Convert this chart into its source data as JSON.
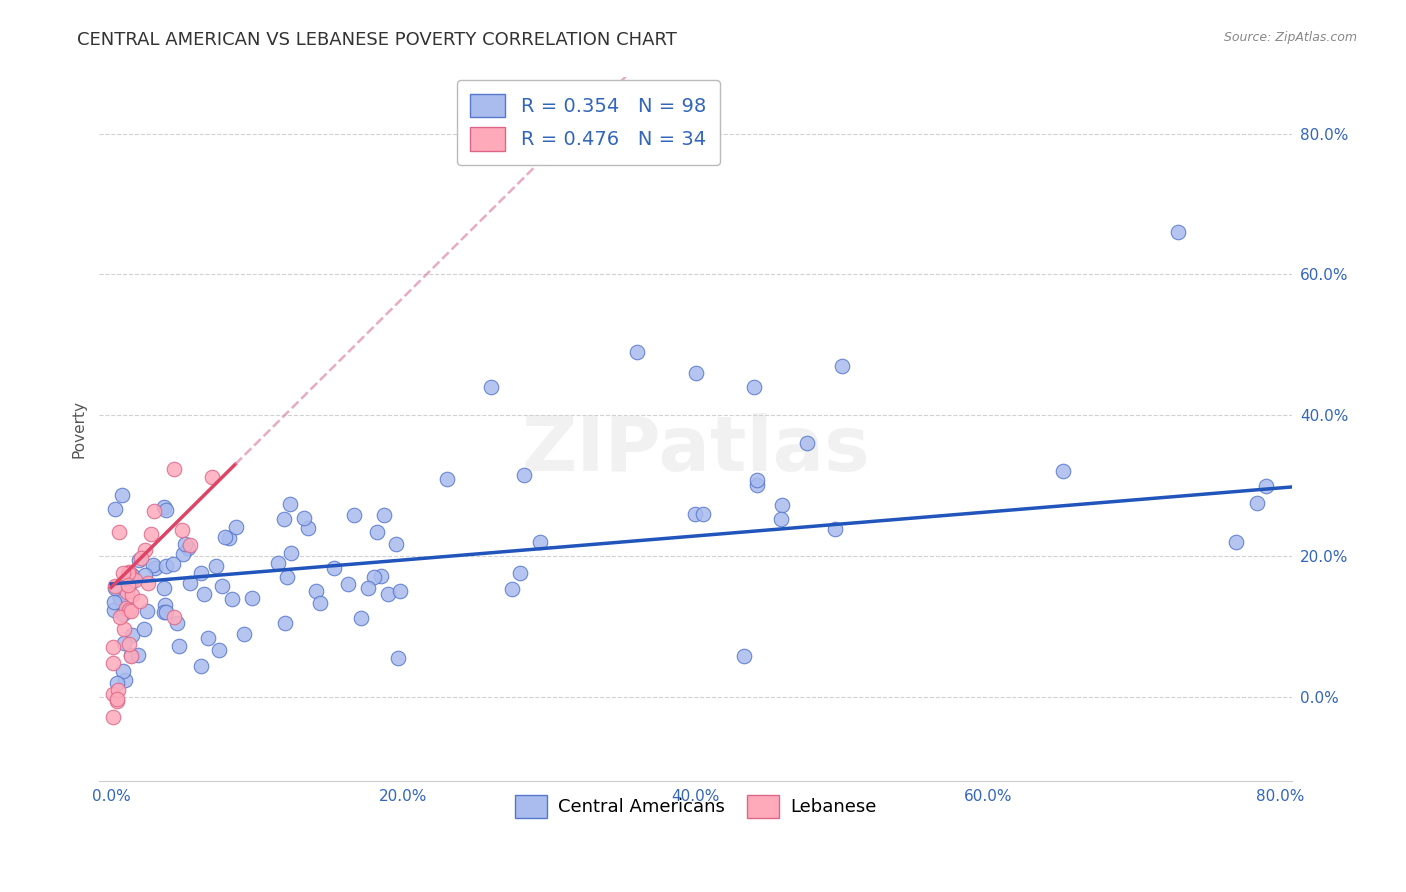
{
  "title": "CENTRAL AMERICAN VS LEBANESE POVERTY CORRELATION CHART",
  "source": "Source: ZipAtlas.com",
  "ylabel": "Poverty",
  "xmin": 0.0,
  "xmax": 0.8,
  "ymin": -0.12,
  "ymax": 0.88,
  "xticks": [
    0.0,
    0.2,
    0.4,
    0.6,
    0.8
  ],
  "yticks": [
    0.0,
    0.2,
    0.4,
    0.6,
    0.8
  ],
  "xtick_labels": [
    "0.0%",
    "20.0%",
    "40.0%",
    "60.0%",
    "80.0%"
  ],
  "ytick_labels": [
    "0.0%",
    "20.0%",
    "40.0%",
    "60.0%",
    "80.0%"
  ],
  "grid_color": "#cccccc",
  "background_color": "#ffffff",
  "blue_color": "#aabbee",
  "pink_color": "#ffaabb",
  "blue_edge_color": "#5577cc",
  "pink_edge_color": "#dd6688",
  "blue_line_color": "#2255bb",
  "pink_line_color": "#dd4466",
  "pink_dash_color": "#dd88aa",
  "r_blue": 0.354,
  "n_blue": 98,
  "r_pink": 0.476,
  "n_pink": 34,
  "legend_label_blue": "Central Americans",
  "legend_label_pink": "Lebanese",
  "watermark": "ZIPatlas",
  "title_fontsize": 13,
  "axis_label_fontsize": 11,
  "tick_fontsize": 11,
  "legend_fontsize": 13,
  "blue_intercept": 0.155,
  "blue_slope": 0.2,
  "pink_intercept": 0.175,
  "pink_slope": 2.2
}
